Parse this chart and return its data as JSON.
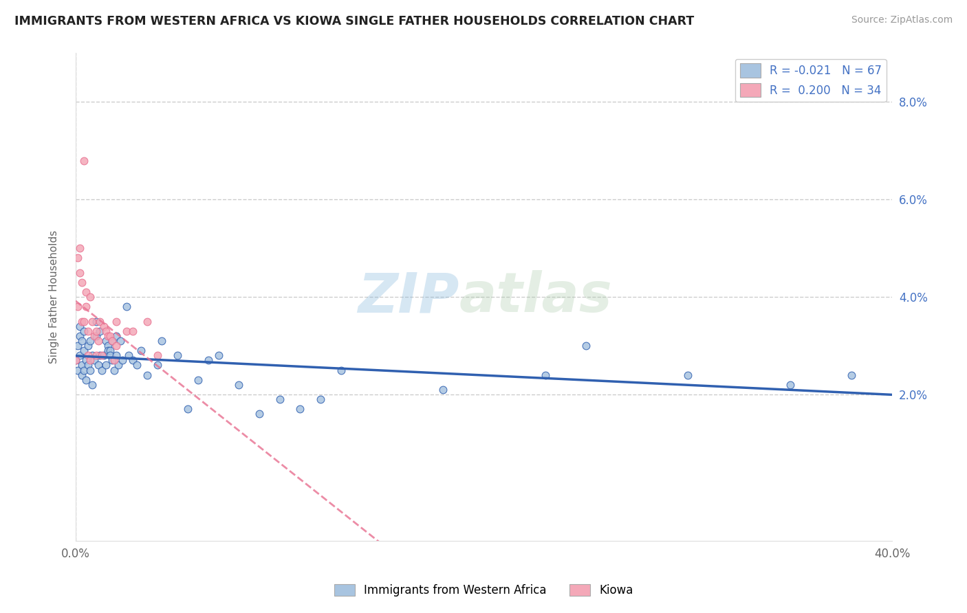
{
  "title": "IMMIGRANTS FROM WESTERN AFRICA VS KIOWA SINGLE FATHER HOUSEHOLDS CORRELATION CHART",
  "source": "Source: ZipAtlas.com",
  "ylabel": "Single Father Households",
  "legend_series1_label": "Immigrants from Western Africa",
  "legend_series2_label": "Kiowa",
  "series1_R": -0.021,
  "series1_N": 67,
  "series2_R": 0.2,
  "series2_N": 34,
  "series1_color": "#a8c4e0",
  "series2_color": "#f4a8b8",
  "series1_line_color": "#3060b0",
  "series2_line_color": "#e87090",
  "background_color": "#ffffff",
  "watermark": "ZIPatlas",
  "xlim": [
    0.0,
    0.4
  ],
  "ylim": [
    -0.01,
    0.09
  ],
  "ytick_vals": [
    0.02,
    0.04,
    0.06,
    0.08
  ],
  "ytick_labels": [
    "2.0%",
    "4.0%",
    "6.0%",
    "8.0%"
  ],
  "series1_points": [
    [
      0.0,
      0.027
    ],
    [
      0.001,
      0.025
    ],
    [
      0.001,
      0.03
    ],
    [
      0.002,
      0.028
    ],
    [
      0.002,
      0.034
    ],
    [
      0.002,
      0.032
    ],
    [
      0.003,
      0.026
    ],
    [
      0.003,
      0.024
    ],
    [
      0.003,
      0.031
    ],
    [
      0.004,
      0.033
    ],
    [
      0.004,
      0.029
    ],
    [
      0.004,
      0.025
    ],
    [
      0.005,
      0.027
    ],
    [
      0.005,
      0.023
    ],
    [
      0.006,
      0.026
    ],
    [
      0.006,
      0.03
    ],
    [
      0.007,
      0.031
    ],
    [
      0.007,
      0.025
    ],
    [
      0.008,
      0.028
    ],
    [
      0.008,
      0.022
    ],
    [
      0.009,
      0.027
    ],
    [
      0.01,
      0.032
    ],
    [
      0.01,
      0.035
    ],
    [
      0.011,
      0.026
    ],
    [
      0.012,
      0.028
    ],
    [
      0.012,
      0.033
    ],
    [
      0.013,
      0.025
    ],
    [
      0.014,
      0.028
    ],
    [
      0.015,
      0.031
    ],
    [
      0.015,
      0.026
    ],
    [
      0.016,
      0.03
    ],
    [
      0.016,
      0.029
    ],
    [
      0.017,
      0.029
    ],
    [
      0.017,
      0.028
    ],
    [
      0.018,
      0.027
    ],
    [
      0.018,
      0.031
    ],
    [
      0.019,
      0.025
    ],
    [
      0.02,
      0.028
    ],
    [
      0.02,
      0.032
    ],
    [
      0.021,
      0.026
    ],
    [
      0.022,
      0.031
    ],
    [
      0.023,
      0.027
    ],
    [
      0.025,
      0.038
    ],
    [
      0.026,
      0.028
    ],
    [
      0.028,
      0.027
    ],
    [
      0.03,
      0.026
    ],
    [
      0.032,
      0.029
    ],
    [
      0.035,
      0.024
    ],
    [
      0.04,
      0.026
    ],
    [
      0.042,
      0.031
    ],
    [
      0.05,
      0.028
    ],
    [
      0.055,
      0.017
    ],
    [
      0.06,
      0.023
    ],
    [
      0.065,
      0.027
    ],
    [
      0.07,
      0.028
    ],
    [
      0.08,
      0.022
    ],
    [
      0.09,
      0.016
    ],
    [
      0.1,
      0.019
    ],
    [
      0.11,
      0.017
    ],
    [
      0.12,
      0.019
    ],
    [
      0.13,
      0.025
    ],
    [
      0.18,
      0.021
    ],
    [
      0.23,
      0.024
    ],
    [
      0.25,
      0.03
    ],
    [
      0.3,
      0.024
    ],
    [
      0.35,
      0.022
    ],
    [
      0.38,
      0.024
    ]
  ],
  "series2_points": [
    [
      0.0,
      0.027
    ],
    [
      0.001,
      0.038
    ],
    [
      0.001,
      0.048
    ],
    [
      0.002,
      0.05
    ],
    [
      0.002,
      0.045
    ],
    [
      0.003,
      0.043
    ],
    [
      0.003,
      0.035
    ],
    [
      0.004,
      0.068
    ],
    [
      0.004,
      0.035
    ],
    [
      0.005,
      0.041
    ],
    [
      0.005,
      0.038
    ],
    [
      0.006,
      0.028
    ],
    [
      0.006,
      0.033
    ],
    [
      0.007,
      0.027
    ],
    [
      0.007,
      0.04
    ],
    [
      0.008,
      0.035
    ],
    [
      0.009,
      0.032
    ],
    [
      0.01,
      0.028
    ],
    [
      0.01,
      0.033
    ],
    [
      0.011,
      0.031
    ],
    [
      0.012,
      0.035
    ],
    [
      0.013,
      0.028
    ],
    [
      0.014,
      0.034
    ],
    [
      0.015,
      0.033
    ],
    [
      0.016,
      0.032
    ],
    [
      0.017,
      0.032
    ],
    [
      0.018,
      0.031
    ],
    [
      0.019,
      0.027
    ],
    [
      0.02,
      0.035
    ],
    [
      0.02,
      0.03
    ],
    [
      0.025,
      0.033
    ],
    [
      0.028,
      0.033
    ],
    [
      0.035,
      0.035
    ],
    [
      0.04,
      0.028
    ]
  ]
}
